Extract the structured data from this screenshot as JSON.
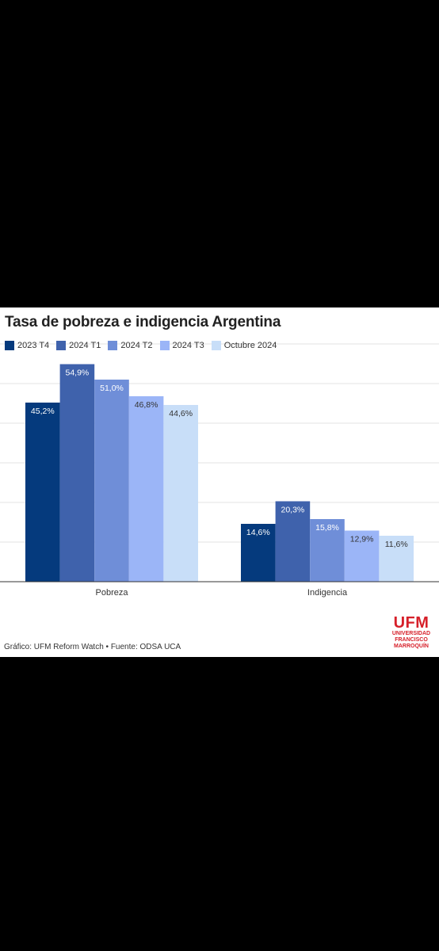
{
  "chart_data": {
    "type": "bar",
    "title": "Tasa de pobreza e indigencia Argentina",
    "categories": [
      "Pobreza",
      "Indigencia"
    ],
    "series": [
      {
        "name": "2023 T4",
        "values": [
          45.2,
          14.6
        ],
        "labels": [
          "45,2%",
          "14,6%"
        ],
        "color": "#053a7d"
      },
      {
        "name": "2024 T1",
        "values": [
          54.9,
          20.3
        ],
        "labels": [
          "54,9%",
          "20,3%"
        ],
        "color": "#3f62ac"
      },
      {
        "name": "2024 T2",
        "values": [
          51.0,
          15.8
        ],
        "labels": [
          "51,0%",
          "15,8%"
        ],
        "color": "#6f8ed8"
      },
      {
        "name": "2024 T3",
        "values": [
          46.8,
          12.9
        ],
        "labels": [
          "46,8%",
          "12,9%"
        ],
        "color": "#9bb5f7"
      },
      {
        "name": "Octubre 2024",
        "values": [
          44.6,
          11.6
        ],
        "labels": [
          "44,6%",
          "11,6%"
        ],
        "color": "#c8def8"
      }
    ],
    "ylim": [
      0,
      60
    ],
    "grid": true,
    "legend": "top-left"
  },
  "footer": {
    "source": "Gráfico: UFM Reform Watch • Fuente: ODSA UCA"
  },
  "logo": {
    "mark": "UFM",
    "line1": "UNIVERSIDAD",
    "line2": "FRANCISCO",
    "line3": "MARROQUÍN",
    "color": "#d6202a"
  }
}
